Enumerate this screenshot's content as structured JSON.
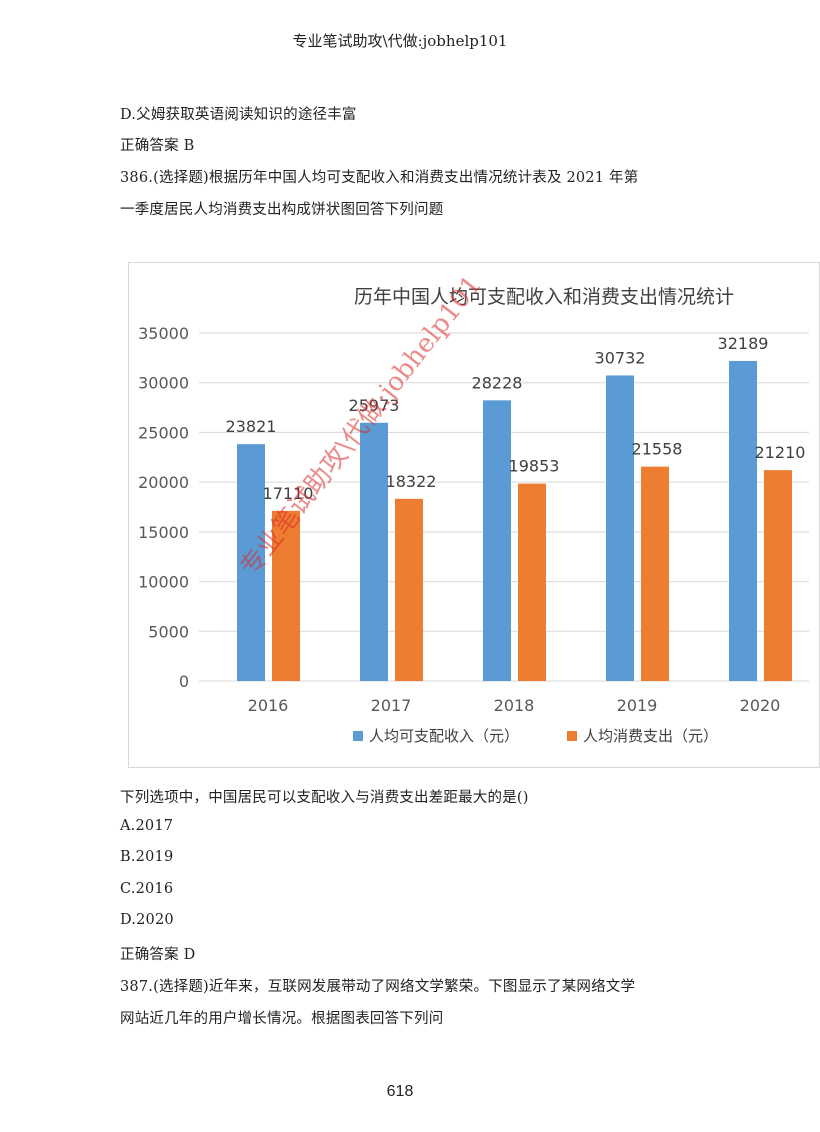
{
  "header": "专业笔试助攻\\代做:jobhelp101",
  "prev_option_d": "D.父姆获取英语阅读知识的途径丰富",
  "prev_answer": "正确答案 B",
  "q386": {
    "stem_line1": "386.(选择题)根据历年中国人均可支配收入和消费支出情况统计表及 2021 年第",
    "stem_line2": "一季度居民人均消费支出构成饼状图回答下列问题",
    "question": "下列选项中，中国居民可以支配收入与消费支出差距最大的是()",
    "options": [
      "A.2017",
      "B.2019",
      "C.2016",
      "D.2020"
    ],
    "answer": "正确答案 D"
  },
  "q387": {
    "stem_line1": "387.(选择题)近年来，互联网发展带动了网络文学繁荣。下图显示了某网络文学",
    "stem_line2": "网站近几年的用户增长情况。根据图表回答下列问"
  },
  "watermark": "专业笔试助攻\\代做:jobhelp101",
  "page_number": "618",
  "colors": {
    "income": "#5b9bd5",
    "expense": "#ed7d31",
    "grid": "#d9d9d9",
    "axis_text": "#595959"
  },
  "chart_data": {
    "type": "bar",
    "title": "历年中国人均可支配收入和消费支出情况统计",
    "categories": [
      "2016",
      "2017",
      "2018",
      "2019",
      "2020"
    ],
    "series": [
      {
        "name": "人均可支配收入（元）",
        "values": [
          23821,
          25973,
          28228,
          30732,
          32189
        ]
      },
      {
        "name": "人均消费支出（元）",
        "values": [
          17110,
          18322,
          19853,
          21558,
          21210
        ]
      }
    ],
    "yticks": [
      "0",
      "5000",
      "10000",
      "15000",
      "20000",
      "25000",
      "30000",
      "35000"
    ],
    "ylim": [
      0,
      35000
    ],
    "grid": true,
    "legend": "bottom"
  }
}
